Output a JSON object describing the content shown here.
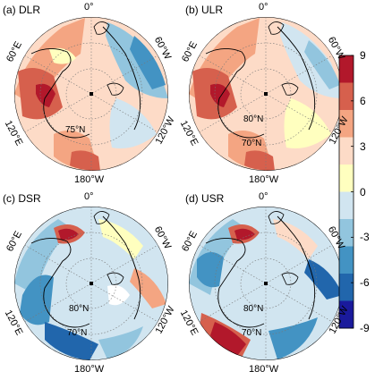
{
  "figure": {
    "panels": [
      {
        "id": "a",
        "label": "(a) DLR",
        "lon_labels": {
          "top": "0°",
          "right": "60°W",
          "bottom": "180°W",
          "left": "60°E",
          "lower_left": "120°E",
          "lower_right": "120°W"
        },
        "lat_labels": [
          "75°N"
        ]
      },
      {
        "id": "b",
        "label": "(b)  ULR",
        "lon_labels": {
          "top": "0°",
          "right": "60°W",
          "bottom": "180°W",
          "left": "60°E",
          "lower_left": "120°E",
          "lower_right": "120°W"
        },
        "lat_labels": [
          "80°N",
          "70°N"
        ]
      },
      {
        "id": "c",
        "label": "(c) DSR",
        "lon_labels": {
          "top": "0°",
          "right": "60°W",
          "bottom": "180°W",
          "left": "60°E",
          "lower_left": "120°E",
          "lower_right": "120°W"
        },
        "lat_labels": [
          "80°N",
          "70°N"
        ]
      },
      {
        "id": "d",
        "label": "(d)  USR",
        "lon_labels": {
          "top": "0°",
          "right": "60°W",
          "bottom": "180°W",
          "left": "60°E",
          "lower_left": "120°E",
          "lower_right": "120°W"
        },
        "lat_labels": [
          "80°N",
          "70°N"
        ]
      }
    ],
    "colorbar": {
      "ticks": [
        "9",
        "6",
        "3",
        "0",
        "-3",
        "-6",
        "-9"
      ],
      "colors": [
        "#b2182b",
        "#d6604d",
        "#f4a582",
        "#fddbc7",
        "#ffffbf",
        "#d1e5f0",
        "#92c5de",
        "#4393c3",
        "#2166ac",
        "#1a1a9c"
      ]
    }
  },
  "chart_data": {
    "type": "heatmap",
    "projection": "north polar stereographic",
    "panels": [
      "DLR",
      "ULR",
      "DSR",
      "USR"
    ],
    "colorbar_range": [
      -9,
      9
    ],
    "colorbar_ticks": [
      9,
      6,
      3,
      0,
      -3,
      -6,
      -9
    ],
    "longitude_labels": [
      "0°",
      "60°W",
      "120°W",
      "180°W",
      "120°E",
      "60°E"
    ],
    "latitude_labels": [
      "70°N",
      "75°N",
      "80°N"
    ]
  }
}
